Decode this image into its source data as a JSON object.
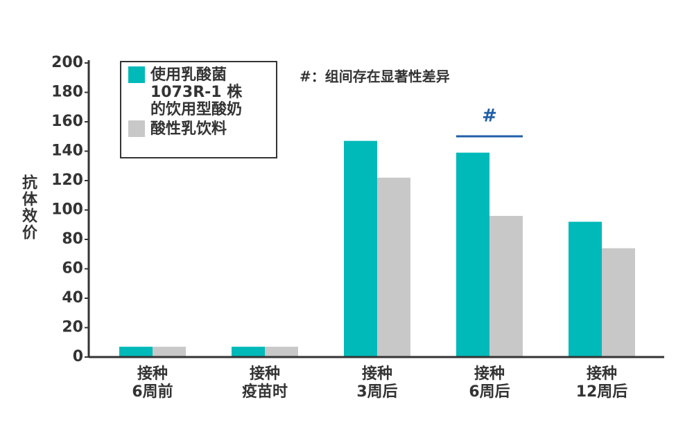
{
  "chart_data": {
    "type": "bar",
    "y_label": "抗体效价",
    "categories": [
      [
        "接种",
        "6周前"
      ],
      [
        "接种",
        "疫苗时"
      ],
      [
        "接种",
        "3周后"
      ],
      [
        "接种",
        "6周后"
      ],
      [
        "接种",
        "12周后"
      ]
    ],
    "series": [
      {
        "name": "使用乳酸菌\n1073R-1 株\n的饮用型酸奶",
        "color": "#00b9b9",
        "values": [
          7,
          7,
          147,
          139,
          92
        ]
      },
      {
        "name": "酸性乳饮料",
        "color": "#c8c8c8",
        "values": [
          7,
          7,
          122,
          96,
          74
        ]
      }
    ],
    "ylim": [
      0,
      200
    ],
    "yticks": [
      0,
      20,
      40,
      60,
      80,
      100,
      120,
      140,
      160,
      180,
      200
    ],
    "note": "#：组间存在显著性差异",
    "significance_marker": {
      "label": "#",
      "color": "#1f5ea8"
    }
  }
}
